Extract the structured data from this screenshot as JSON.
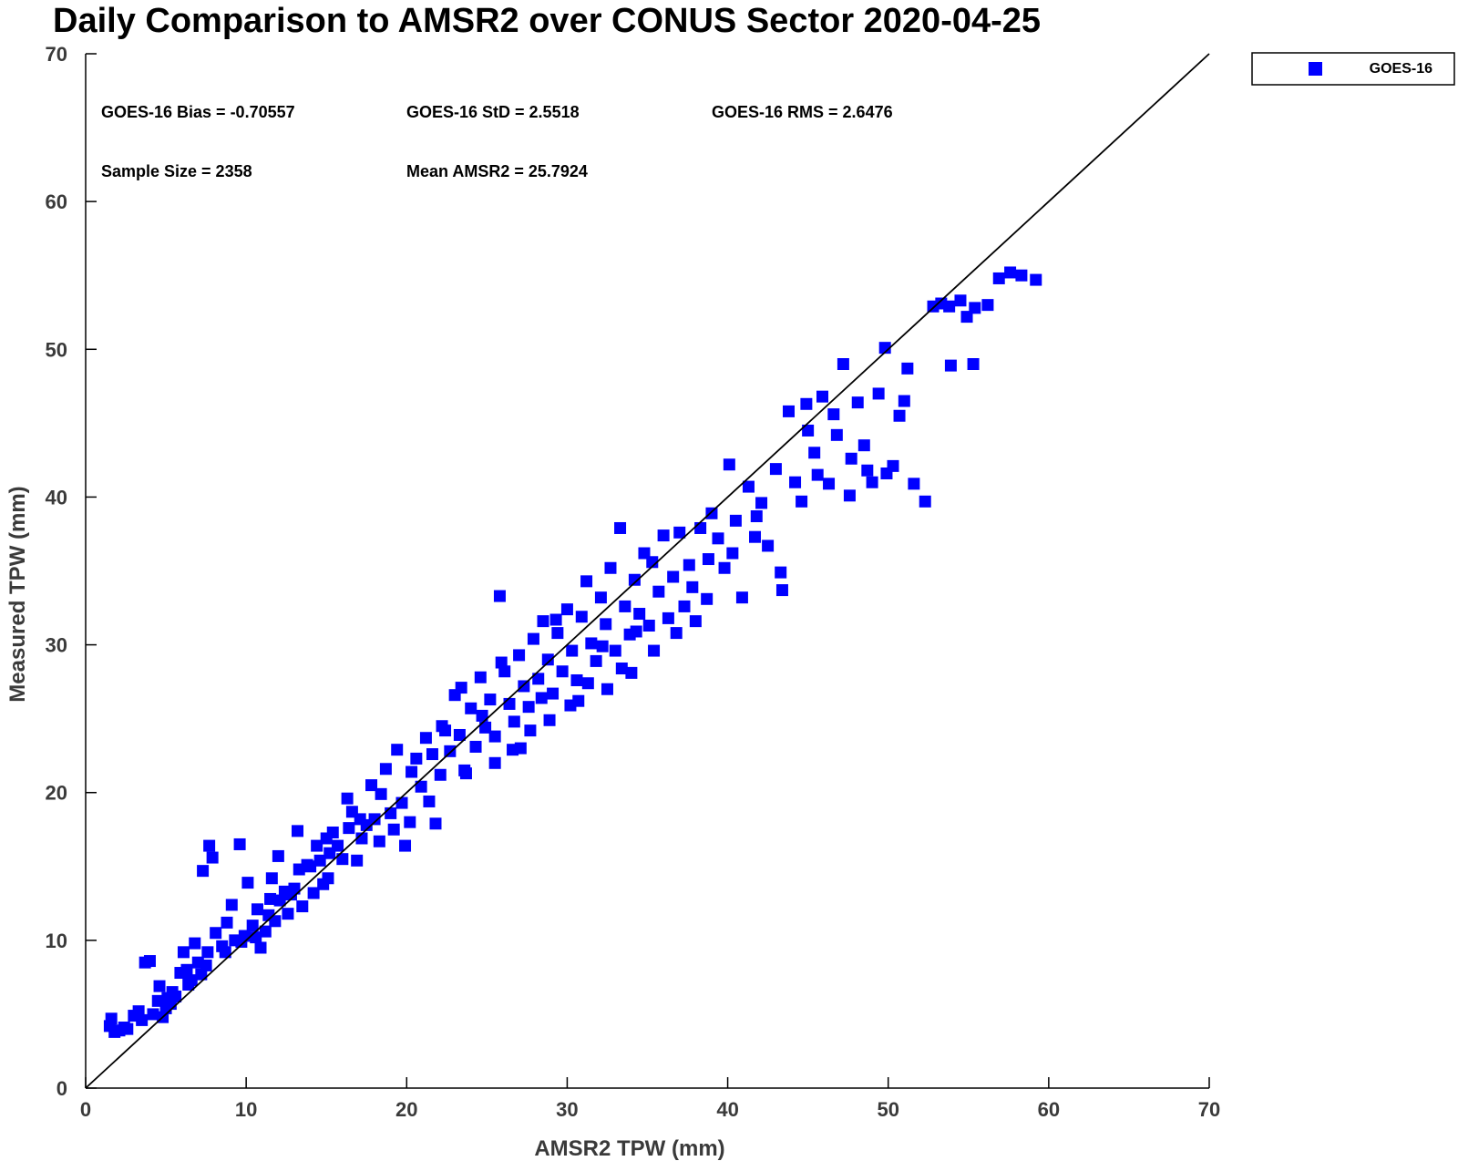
{
  "chart_data": {
    "type": "scatter",
    "title": "Daily Comparison to AMSR2 over CONUS Sector 2020-04-25",
    "xlabel": "AMSR2 TPW (mm)",
    "ylabel": "Measured TPW (mm)",
    "xlim": [
      0,
      70
    ],
    "ylim": [
      0,
      70
    ],
    "xticks": [
      0,
      10,
      20,
      30,
      40,
      50,
      60,
      70
    ],
    "yticks": [
      0,
      10,
      20,
      30,
      40,
      50,
      60,
      70
    ],
    "grid": false,
    "legend_position": "top-right",
    "reference_line": {
      "name": "1:1 line",
      "from": [
        0,
        0
      ],
      "to": [
        70,
        70
      ]
    },
    "stats": {
      "bias": "GOES-16 Bias = -0.70557",
      "std": "GOES-16 StD = 2.5518",
      "rms": "GOES-16 RMS = 2.6476",
      "sample_size": "Sample Size = 2358",
      "mean": "Mean AMSR2 = 25.7924"
    },
    "series": [
      {
        "name": "GOES-16",
        "color": "#0000ff",
        "marker": "square",
        "points": [
          [
            1.5,
            4.2
          ],
          [
            1.6,
            4.7
          ],
          [
            1.8,
            3.8
          ],
          [
            2.1,
            3.9
          ],
          [
            2.4,
            4.1
          ],
          [
            2.6,
            4.0
          ],
          [
            3.0,
            4.9
          ],
          [
            3.3,
            5.2
          ],
          [
            3.5,
            4.6
          ],
          [
            3.7,
            8.5
          ],
          [
            4.0,
            8.6
          ],
          [
            4.2,
            5.0
          ],
          [
            4.5,
            5.9
          ],
          [
            4.6,
            6.9
          ],
          [
            4.8,
            4.8
          ],
          [
            5.0,
            5.4
          ],
          [
            5.1,
            6.1
          ],
          [
            5.3,
            5.7
          ],
          [
            5.6,
            6.2
          ],
          [
            5.9,
            7.8
          ],
          [
            6.1,
            9.2
          ],
          [
            6.3,
            8.0
          ],
          [
            6.6,
            7.3
          ],
          [
            6.8,
            9.8
          ],
          [
            7.0,
            8.5
          ],
          [
            7.2,
            7.7
          ],
          [
            7.3,
            14.7
          ],
          [
            7.6,
            9.2
          ],
          [
            7.7,
            16.4
          ],
          [
            7.9,
            15.6
          ],
          [
            8.1,
            10.5
          ],
          [
            8.5,
            9.6
          ],
          [
            8.8,
            11.2
          ],
          [
            9.1,
            12.4
          ],
          [
            9.3,
            10.0
          ],
          [
            9.6,
            16.5
          ],
          [
            9.9,
            10.3
          ],
          [
            10.1,
            13.9
          ],
          [
            10.4,
            11.0
          ],
          [
            10.7,
            12.1
          ],
          [
            10.9,
            9.5
          ],
          [
            11.2,
            10.6
          ],
          [
            11.5,
            12.8
          ],
          [
            11.6,
            14.2
          ],
          [
            11.8,
            11.3
          ],
          [
            12.0,
            15.7
          ],
          [
            12.1,
            12.7
          ],
          [
            12.4,
            13.3
          ],
          [
            12.6,
            11.8
          ],
          [
            13.0,
            13.5
          ],
          [
            13.2,
            17.4
          ],
          [
            13.3,
            14.8
          ],
          [
            13.5,
            12.3
          ],
          [
            13.8,
            15.1
          ],
          [
            14.2,
            13.2
          ],
          [
            14.4,
            16.4
          ],
          [
            14.6,
            15.4
          ],
          [
            14.8,
            13.8
          ],
          [
            15.0,
            16.9
          ],
          [
            15.2,
            15.9
          ],
          [
            15.4,
            17.3
          ],
          [
            15.7,
            16.4
          ],
          [
            16.0,
            15.5
          ],
          [
            16.3,
            19.6
          ],
          [
            16.6,
            18.7
          ],
          [
            16.9,
            15.4
          ],
          [
            17.2,
            16.9
          ],
          [
            17.5,
            17.8
          ],
          [
            17.8,
            20.5
          ],
          [
            18.0,
            18.2
          ],
          [
            18.4,
            19.9
          ],
          [
            18.7,
            21.6
          ],
          [
            19.0,
            18.6
          ],
          [
            19.4,
            22.9
          ],
          [
            19.7,
            19.3
          ],
          [
            19.9,
            16.4
          ],
          [
            20.3,
            21.4
          ],
          [
            20.6,
            22.3
          ],
          [
            20.9,
            20.4
          ],
          [
            21.2,
            23.7
          ],
          [
            21.6,
            22.6
          ],
          [
            21.8,
            17.9
          ],
          [
            22.1,
            21.2
          ],
          [
            22.4,
            24.2
          ],
          [
            22.7,
            22.8
          ],
          [
            23.0,
            26.6
          ],
          [
            23.3,
            23.9
          ],
          [
            23.6,
            21.5
          ],
          [
            24.0,
            25.7
          ],
          [
            24.3,
            23.1
          ],
          [
            24.6,
            27.8
          ],
          [
            24.9,
            24.4
          ],
          [
            25.2,
            26.3
          ],
          [
            25.5,
            23.8
          ],
          [
            25.8,
            33.3
          ],
          [
            26.1,
            28.2
          ],
          [
            26.4,
            26.0
          ],
          [
            26.7,
            24.8
          ],
          [
            27.0,
            29.3
          ],
          [
            27.3,
            27.2
          ],
          [
            27.6,
            25.8
          ],
          [
            27.9,
            30.4
          ],
          [
            28.2,
            27.7
          ],
          [
            28.5,
            31.6
          ],
          [
            28.8,
            29.0
          ],
          [
            29.1,
            26.7
          ],
          [
            29.4,
            30.8
          ],
          [
            29.7,
            28.2
          ],
          [
            30.0,
            32.4
          ],
          [
            30.3,
            29.6
          ],
          [
            30.6,
            27.6
          ],
          [
            30.9,
            31.9
          ],
          [
            31.2,
            34.3
          ],
          [
            31.5,
            30.1
          ],
          [
            31.8,
            28.9
          ],
          [
            32.1,
            33.2
          ],
          [
            32.4,
            31.4
          ],
          [
            32.7,
            35.2
          ],
          [
            33.0,
            29.6
          ],
          [
            33.3,
            37.9
          ],
          [
            33.6,
            32.6
          ],
          [
            33.9,
            30.7
          ],
          [
            34.2,
            34.4
          ],
          [
            34.5,
            32.1
          ],
          [
            34.8,
            36.2
          ],
          [
            35.1,
            31.3
          ],
          [
            35.4,
            29.6
          ],
          [
            35.7,
            33.6
          ],
          [
            36.0,
            37.4
          ],
          [
            36.3,
            31.8
          ],
          [
            36.6,
            34.6
          ],
          [
            37.0,
            37.6
          ],
          [
            37.3,
            32.6
          ],
          [
            37.6,
            35.4
          ],
          [
            38.0,
            31.6
          ],
          [
            38.3,
            37.9
          ],
          [
            38.7,
            33.1
          ],
          [
            39.0,
            38.9
          ],
          [
            39.4,
            37.2
          ],
          [
            39.8,
            35.2
          ],
          [
            40.1,
            42.2
          ],
          [
            40.5,
            38.4
          ],
          [
            40.9,
            33.2
          ],
          [
            41.3,
            40.7
          ],
          [
            41.7,
            37.3
          ],
          [
            42.1,
            39.6
          ],
          [
            42.5,
            36.7
          ],
          [
            43.0,
            41.9
          ],
          [
            43.4,
            33.7
          ],
          [
            43.8,
            45.8
          ],
          [
            44.2,
            41.0
          ],
          [
            44.6,
            39.7
          ],
          [
            45.0,
            44.5
          ],
          [
            45.4,
            43.0
          ],
          [
            45.9,
            46.8
          ],
          [
            46.3,
            40.9
          ],
          [
            46.8,
            44.2
          ],
          [
            47.2,
            49.0
          ],
          [
            47.7,
            42.6
          ],
          [
            48.1,
            46.4
          ],
          [
            48.5,
            43.5
          ],
          [
            49.0,
            41.0
          ],
          [
            49.4,
            47.0
          ],
          [
            49.8,
            50.1
          ],
          [
            50.3,
            42.1
          ],
          [
            50.7,
            45.5
          ],
          [
            51.2,
            48.7
          ],
          [
            51.6,
            40.9
          ],
          [
            52.3,
            39.7
          ],
          [
            52.8,
            52.9
          ],
          [
            53.3,
            53.1
          ],
          [
            53.9,
            48.9
          ],
          [
            54.5,
            53.3
          ],
          [
            54.9,
            52.2
          ],
          [
            55.4,
            52.8
          ],
          [
            56.2,
            53.0
          ],
          [
            56.9,
            54.8
          ],
          [
            57.6,
            55.2
          ],
          [
            58.3,
            55.0
          ],
          [
            59.2,
            54.7
          ],
          [
            22.2,
            24.5
          ],
          [
            23.4,
            27.1
          ],
          [
            24.7,
            25.2
          ],
          [
            25.9,
            28.8
          ],
          [
            26.6,
            22.9
          ],
          [
            27.7,
            24.2
          ],
          [
            28.4,
            26.4
          ],
          [
            29.3,
            31.7
          ],
          [
            30.2,
            25.9
          ],
          [
            31.3,
            27.4
          ],
          [
            32.2,
            29.9
          ],
          [
            33.4,
            28.4
          ],
          [
            34.3,
            30.9
          ],
          [
            35.3,
            35.6
          ],
          [
            36.8,
            30.8
          ],
          [
            37.8,
            33.9
          ],
          [
            38.8,
            35.8
          ],
          [
            40.3,
            36.2
          ],
          [
            41.8,
            38.7
          ],
          [
            43.3,
            34.9
          ],
          [
            18.3,
            16.7
          ],
          [
            19.2,
            17.5
          ],
          [
            20.2,
            18.0
          ],
          [
            21.4,
            19.4
          ],
          [
            17.1,
            18.2
          ],
          [
            16.4,
            17.6
          ],
          [
            15.1,
            14.2
          ],
          [
            14.0,
            15.0
          ],
          [
            12.8,
            13.1
          ],
          [
            11.4,
            11.7
          ],
          [
            10.6,
            10.2
          ],
          [
            9.7,
            9.9
          ],
          [
            8.7,
            9.2
          ],
          [
            7.5,
            8.3
          ],
          [
            6.4,
            7.0
          ],
          [
            5.4,
            6.5
          ],
          [
            44.9,
            46.3
          ],
          [
            45.6,
            41.5
          ],
          [
            46.6,
            45.6
          ],
          [
            47.6,
            40.1
          ],
          [
            48.7,
            41.8
          ],
          [
            49.9,
            41.6
          ],
          [
            51.0,
            46.5
          ],
          [
            53.8,
            52.9
          ],
          [
            55.3,
            49.0
          ],
          [
            25.5,
            22.0
          ],
          [
            27.1,
            23.0
          ],
          [
            28.9,
            24.9
          ],
          [
            30.7,
            26.2
          ],
          [
            32.5,
            27.0
          ],
          [
            34.0,
            28.1
          ],
          [
            23.7,
            21.3
          ]
        ]
      }
    ]
  }
}
